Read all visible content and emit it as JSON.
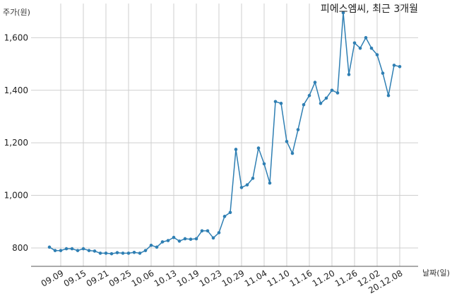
{
  "chart_data": {
    "type": "line",
    "title": "피에스엠씨, 최근 3개월",
    "ylabel": "주가(원)",
    "xlabel": "날짜(일)",
    "ylim": [
      730,
      1730
    ],
    "yticks": [
      800,
      1000,
      1200,
      1400,
      1600
    ],
    "ytick_labels": [
      "800",
      "1,000",
      "1,200",
      "1,400",
      "1,600"
    ],
    "x_tick_labels": [
      "09.09",
      "09.15",
      "09.21",
      "09.25",
      "10.06",
      "10.13",
      "10.19",
      "10.23",
      "10.29",
      "11.04",
      "11.10",
      "11.16",
      "11.20",
      "11.26",
      "12.02",
      "20.12.08"
    ],
    "x_tick_index": [
      2,
      6,
      10,
      14,
      18,
      22,
      26,
      30,
      34,
      38,
      42,
      46,
      50,
      54,
      58,
      62
    ],
    "grid": true,
    "line_color": "#2f7fb3",
    "series": [
      {
        "values": [
          803,
          790,
          790,
          797,
          797,
          790,
          797,
          790,
          788,
          780,
          780,
          778,
          782,
          780,
          780,
          783,
          780,
          790,
          810,
          803,
          823,
          828,
          840,
          826,
          835,
          833,
          835,
          865,
          865,
          838,
          858,
          920,
          935,
          1175,
          1030,
          1040,
          1065,
          1180,
          1120,
          1047,
          1357,
          1350,
          1205,
          1160,
          1250,
          1345,
          1380,
          1430,
          1350,
          1370,
          1400,
          1390,
          1695,
          1460,
          1580,
          1560,
          1600,
          1560,
          1535,
          1465,
          1380,
          1495,
          1490
        ]
      }
    ]
  }
}
